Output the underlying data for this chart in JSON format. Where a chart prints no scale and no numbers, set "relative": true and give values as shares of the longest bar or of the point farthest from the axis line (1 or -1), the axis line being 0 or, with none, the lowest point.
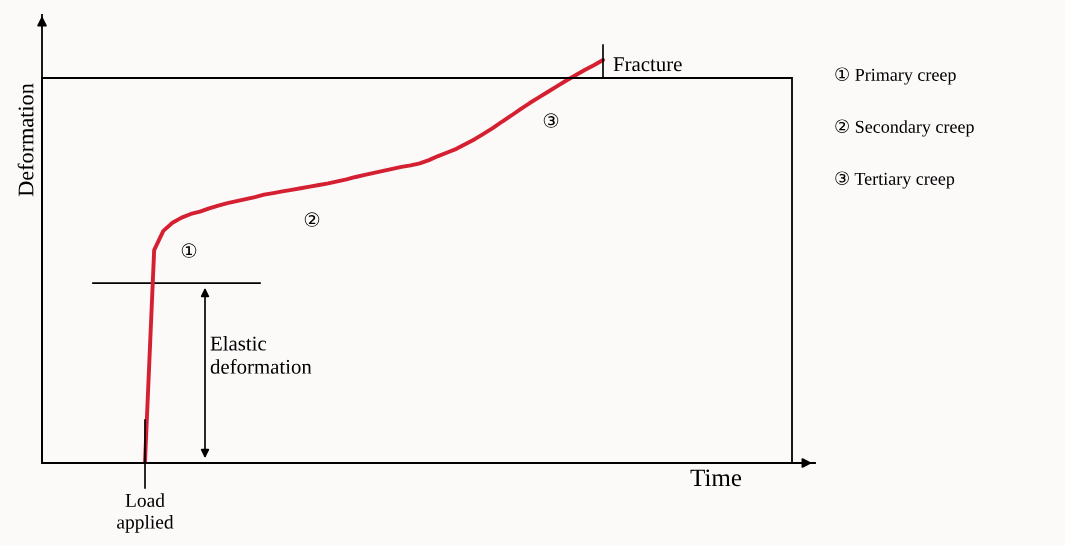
{
  "chart_data": {
    "type": "line",
    "relative": true,
    "xlabel": "Time",
    "ylabel": "Deformation",
    "color": "#d42030",
    "categories": [
      null,
      null,
      null,
      null,
      null,
      null,
      null,
      null,
      null,
      null,
      null,
      null,
      null,
      null,
      null,
      null,
      null,
      null,
      null,
      null,
      null,
      null,
      null,
      null,
      null,
      null,
      null,
      null,
      null,
      null,
      null,
      null,
      null,
      null,
      null,
      null,
      null,
      null,
      null,
      null,
      null,
      null,
      null,
      null,
      null,
      null,
      null,
      null,
      null,
      null,
      null
    ],
    "values": [
      0,
      0.527,
      0.575,
      0.595,
      0.608,
      0.617,
      0.623,
      0.631,
      0.638,
      0.644,
      0.649,
      0.654,
      0.659,
      0.665,
      0.669,
      0.673,
      0.677,
      0.681,
      0.685,
      0.689,
      0.693,
      0.698,
      0.703,
      0.709,
      0.714,
      0.719,
      0.724,
      0.729,
      0.734,
      0.738,
      0.743,
      0.751,
      0.761,
      0.77,
      0.779,
      0.791,
      0.803,
      0.817,
      0.831,
      0.847,
      0.862,
      0.878,
      0.893,
      0.907,
      0.921,
      0.935,
      0.949,
      0.962,
      0.975,
      0.987,
      1.0
    ],
    "ref_lines": [
      {
        "axis": "y",
        "value": 0.445,
        "color": "#000000"
      }
    ],
    "annotations": [
      "①",
      "②",
      "③",
      "Fracture",
      "Elastic\ndeformation",
      "Load\napplied",
      "① Primary creep",
      "② Secondary creep",
      "③ Tertiary creep"
    ],
    "grid": false,
    "legend": false,
    "marker": "none",
    "line_style": "solid"
  }
}
